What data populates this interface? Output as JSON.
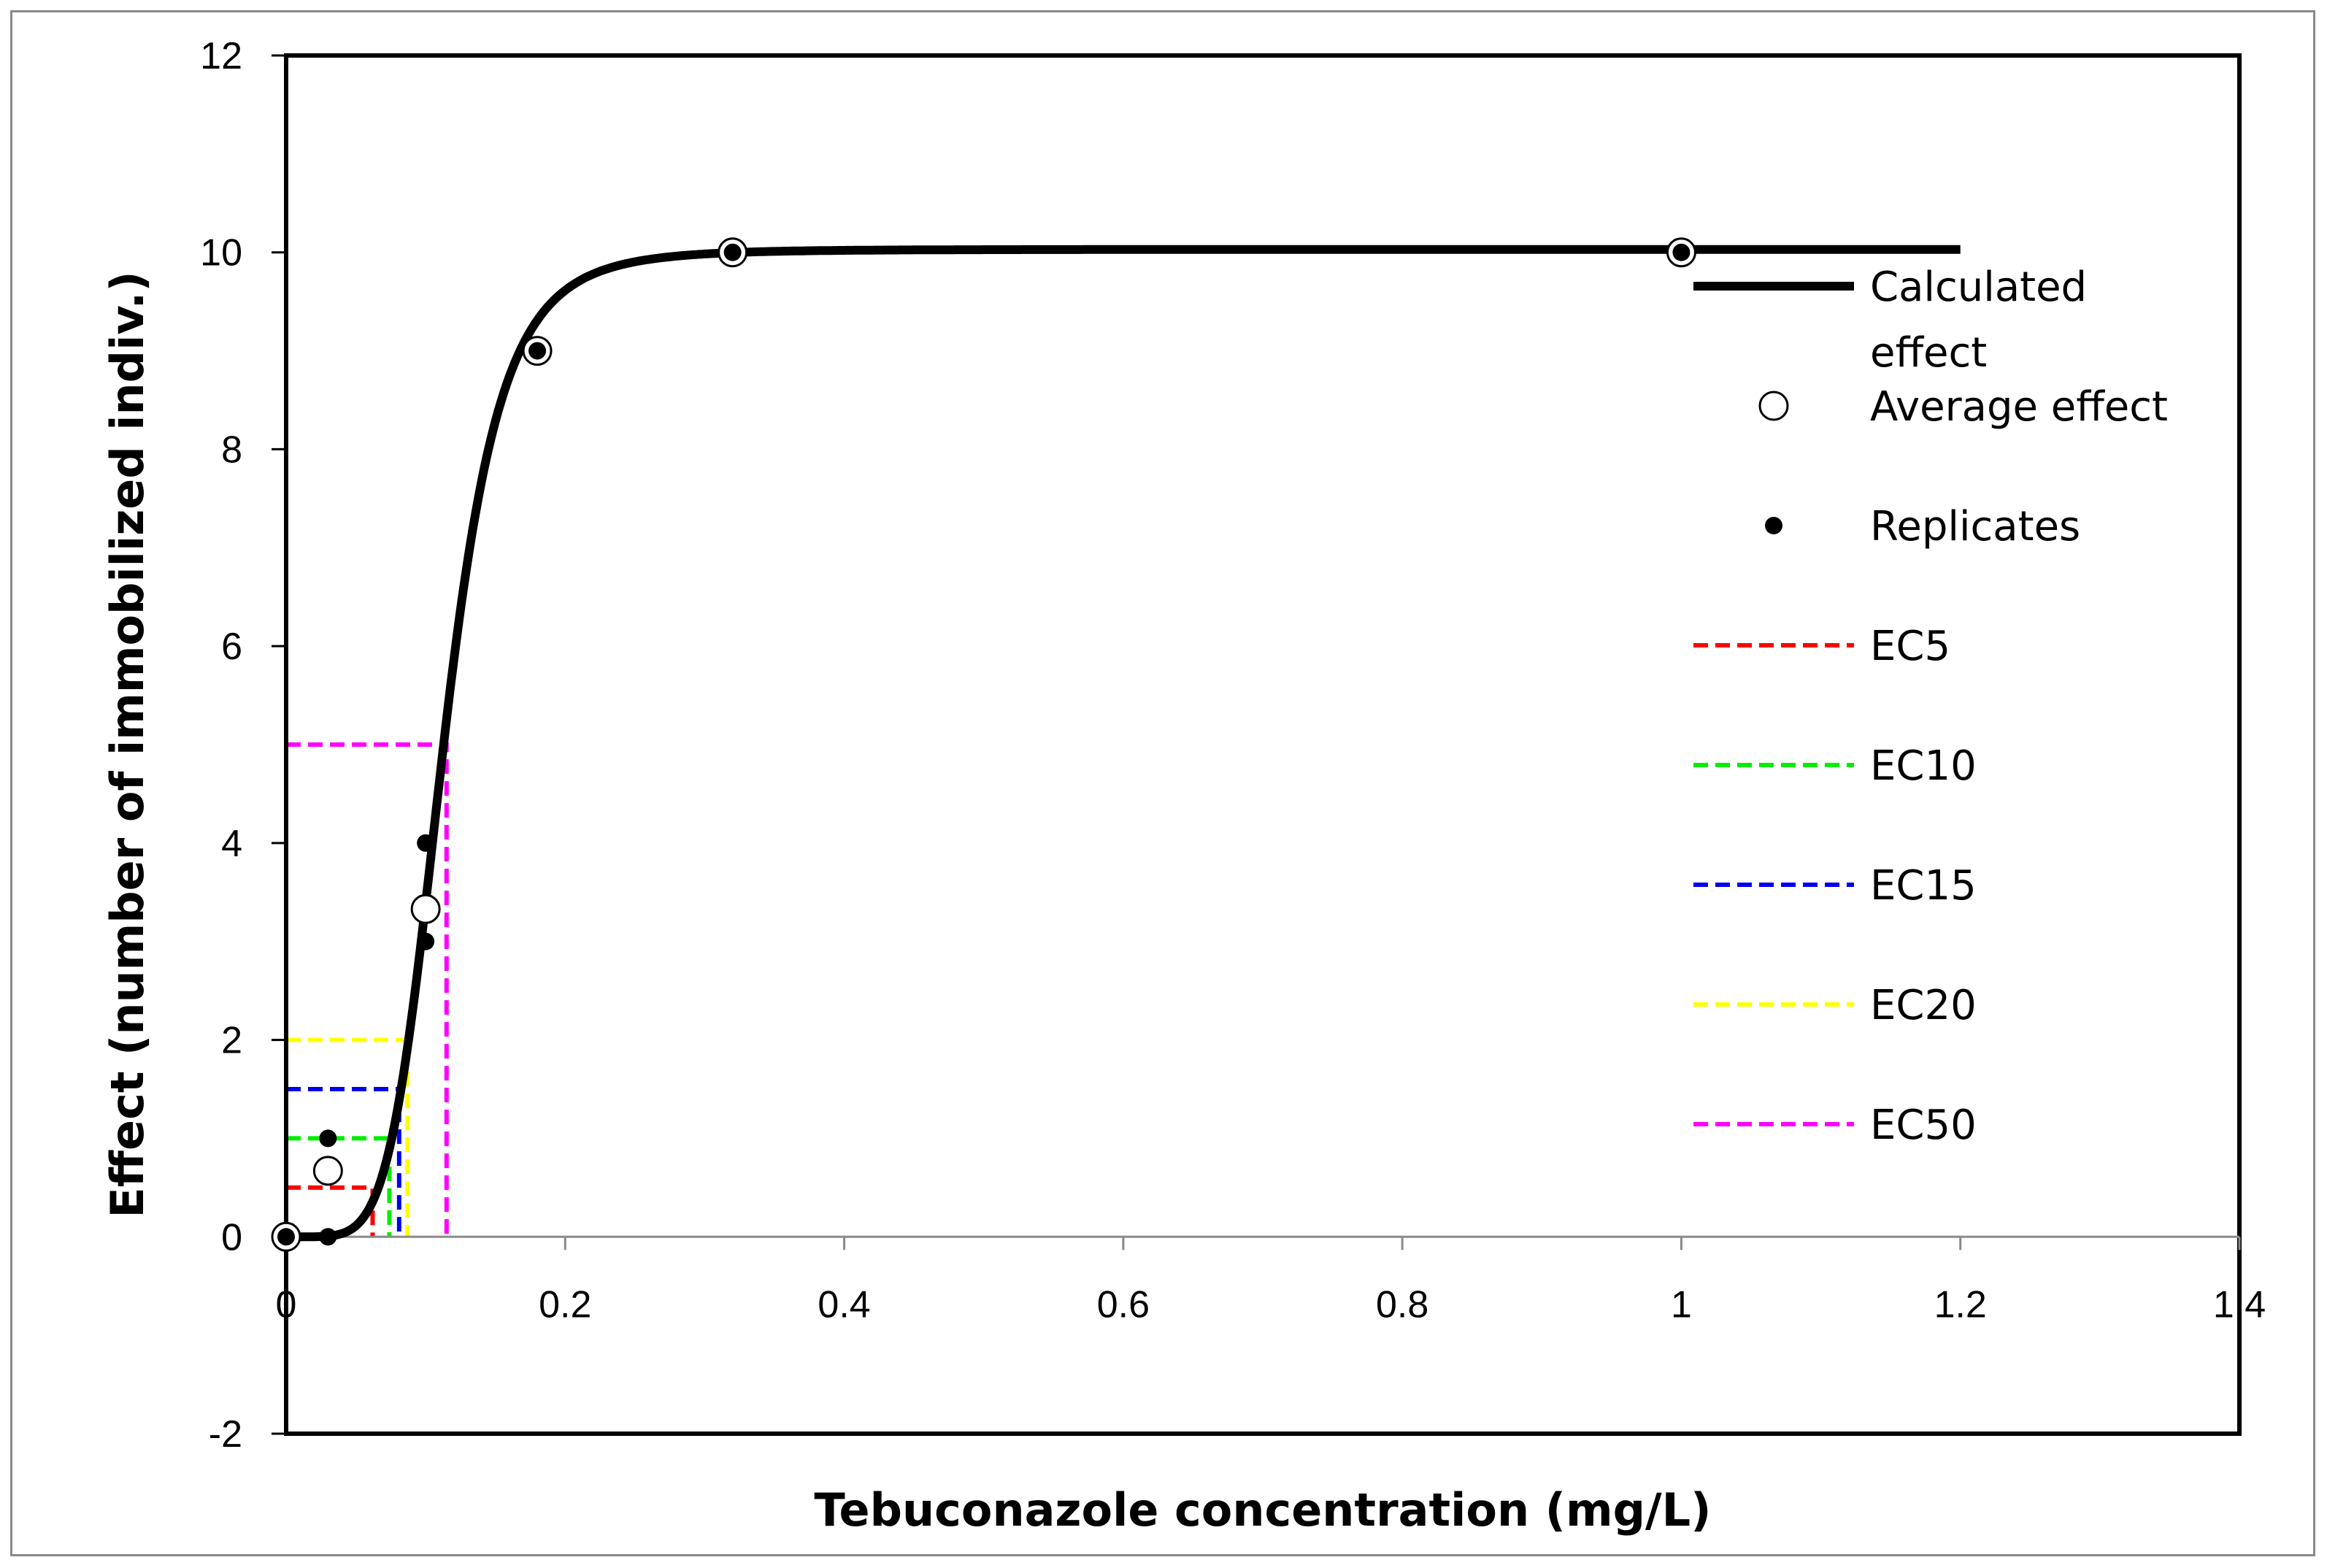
{
  "chart_data": {
    "type": "scatter",
    "title": "",
    "xlabel": "Tebuconazole concentration (mg/L)",
    "ylabel": "Effect (number of immobilized indiv.)",
    "xlim": [
      0,
      1.4
    ],
    "ylim": [
      -2,
      12
    ],
    "xticks": [
      0,
      0.2,
      0.4,
      0.6,
      0.8,
      1,
      1.2,
      1.4
    ],
    "xtick_labels": [
      "0",
      "0.2",
      "0.4",
      "0.6",
      "0.8",
      "1",
      "1.2",
      "1.4"
    ],
    "yticks": [
      -2,
      0,
      2,
      4,
      6,
      8,
      10,
      12
    ],
    "ytick_labels": [
      "-2",
      "0",
      "2",
      "4",
      "6",
      "8",
      "10",
      "12"
    ],
    "grid": false,
    "legend_position": "right",
    "series": [
      {
        "name": "Calculated effect",
        "kind": "line",
        "color": "#000000",
        "model": {
          "top": 10.03,
          "ec50": 0.113,
          "hill": 5.5
        },
        "x_range": [
          0,
          1.2
        ]
      },
      {
        "name": "Average effect",
        "kind": "marker-open",
        "color": "#000000",
        "x": [
          0,
          0.03,
          0.1,
          0.18,
          0.32,
          1.0
        ],
        "y": [
          0,
          0.67,
          3.33,
          9,
          10,
          10
        ]
      },
      {
        "name": "Replicates",
        "kind": "marker-filled",
        "color": "#000000",
        "x": [
          0,
          0.03,
          0.03,
          0.1,
          0.1,
          0.18,
          0.32,
          1.0
        ],
        "y": [
          0,
          0,
          1,
          3,
          4,
          9,
          10,
          10
        ]
      },
      {
        "name": "EC5",
        "kind": "dashed-guide",
        "color": "#ff0000",
        "x": 0.062,
        "y": 0.5
      },
      {
        "name": "EC10",
        "kind": "dashed-guide",
        "color": "#00ee00",
        "x": 0.074,
        "y": 1.0
      },
      {
        "name": "EC15",
        "kind": "dashed-guide",
        "color": "#0000ee",
        "x": 0.081,
        "y": 1.5
      },
      {
        "name": "EC20",
        "kind": "dashed-guide",
        "color": "#ffff00",
        "x": 0.087,
        "y": 2.0
      },
      {
        "name": "EC50",
        "kind": "dashed-guide",
        "color": "#ff00ff",
        "x": 0.115,
        "y": 5.0
      }
    ],
    "legend": [
      {
        "label_lines": [
          "Calculated",
          "effect"
        ],
        "kind": "line",
        "color": "#000000"
      },
      {
        "label_lines": [
          "Average effect"
        ],
        "kind": "marker-open",
        "color": "#000000"
      },
      {
        "label_lines": [
          "Replicates"
        ],
        "kind": "marker-filled",
        "color": "#000000"
      },
      {
        "label_lines": [
          "EC5"
        ],
        "kind": "dashed",
        "color": "#ff0000"
      },
      {
        "label_lines": [
          "EC10"
        ],
        "kind": "dashed",
        "color": "#00ee00"
      },
      {
        "label_lines": [
          "EC15"
        ],
        "kind": "dashed",
        "color": "#0000ee"
      },
      {
        "label_lines": [
          "EC20"
        ],
        "kind": "dashed",
        "color": "#ffff00"
      },
      {
        "label_lines": [
          "EC50"
        ],
        "kind": "dashed",
        "color": "#ff00ff"
      }
    ]
  }
}
